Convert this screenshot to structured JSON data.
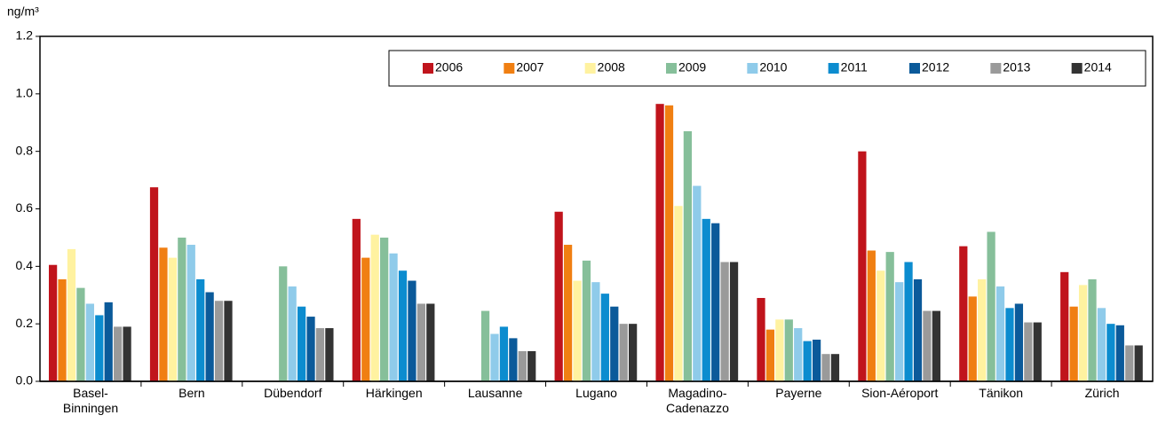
{
  "chart_data": {
    "type": "bar",
    "y_label": "ng/m³",
    "categories": [
      "Basel-\nBinningen",
      "Bern",
      "Dübendorf",
      "Härkingen",
      "Lausanne",
      "Lugano",
      "Magadino-\nCadenazzo",
      "Payerne",
      "Sion-Aéroport",
      "Tänikon",
      "Zürich"
    ],
    "series": [
      {
        "name": "2006",
        "color": "#c0141c",
        "values": [
          0.405,
          0.675,
          null,
          0.565,
          null,
          0.59,
          0.965,
          0.29,
          0.8,
          0.47,
          0.38
        ]
      },
      {
        "name": "2007",
        "color": "#f07f12",
        "values": [
          0.355,
          0.465,
          null,
          0.43,
          null,
          0.475,
          0.96,
          0.18,
          0.455,
          0.295,
          0.26
        ]
      },
      {
        "name": "2008",
        "color": "#fff2a0",
        "values": [
          0.46,
          0.43,
          null,
          0.51,
          null,
          0.35,
          0.61,
          0.215,
          0.385,
          0.355,
          0.335
        ]
      },
      {
        "name": "2009",
        "color": "#86bf9a",
        "values": [
          0.325,
          0.5,
          0.4,
          0.5,
          0.245,
          0.42,
          0.87,
          0.215,
          0.45,
          0.52,
          0.355
        ]
      },
      {
        "name": "2010",
        "color": "#8fcbea",
        "values": [
          0.27,
          0.475,
          0.33,
          0.445,
          0.165,
          0.345,
          0.68,
          0.185,
          0.345,
          0.33,
          0.255
        ]
      },
      {
        "name": "2011",
        "color": "#0c8ccf",
        "values": [
          0.23,
          0.355,
          0.26,
          0.385,
          0.19,
          0.305,
          0.565,
          0.14,
          0.415,
          0.255,
          0.2
        ]
      },
      {
        "name": "2012",
        "color": "#0b5a9a",
        "values": [
          0.275,
          0.31,
          0.225,
          0.35,
          0.15,
          0.26,
          0.55,
          0.145,
          0.355,
          0.27,
          0.195
        ]
      },
      {
        "name": "2013",
        "color": "#9a9a9a",
        "values": [
          0.19,
          0.28,
          0.185,
          0.27,
          0.105,
          0.2,
          0.415,
          0.095,
          0.245,
          0.205,
          0.125
        ]
      },
      {
        "name": "2014",
        "color": "#333333",
        "values": [
          0.19,
          0.28,
          0.185,
          0.27,
          0.105,
          0.2,
          0.415,
          0.095,
          0.245,
          0.205,
          0.125
        ]
      }
    ],
    "ylim": [
      0,
      1.2
    ],
    "yticks": [
      {
        "value": 0,
        "label": "0.0"
      },
      {
        "value": 0.2,
        "label": "0.2"
      },
      {
        "value": 0.4,
        "label": "0.4"
      },
      {
        "value": 0.6,
        "label": "0.6"
      },
      {
        "value": 0.8,
        "label": "0.8"
      },
      {
        "value": 1.0,
        "label": "1.0"
      },
      {
        "value": 1.2,
        "label": "1.2"
      }
    ],
    "grid": false,
    "legend": "top-right"
  }
}
